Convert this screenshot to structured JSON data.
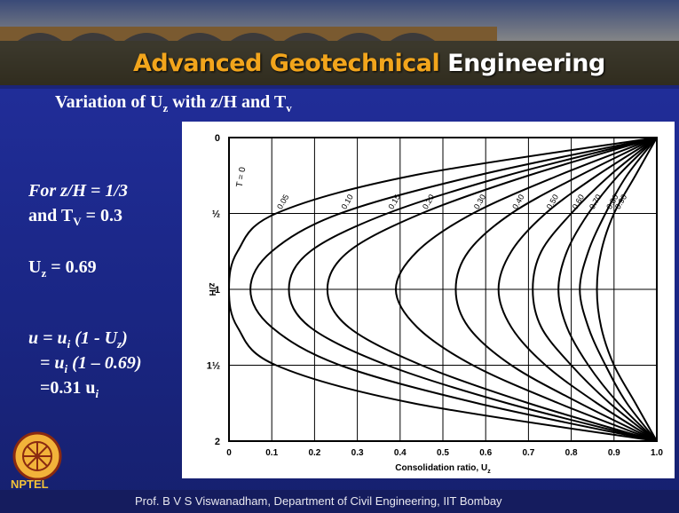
{
  "header": {
    "course_title_1": "Advanced Geotechnical",
    "course_title_2": "Engineering"
  },
  "slide_title": [
    "Variation of U",
    "z",
    " with z/H and T",
    "v"
  ],
  "notes": {
    "line1": "For z/H = 1/3",
    "line2": [
      "and T",
      "V",
      " = 0.3"
    ],
    "line3": [
      "U",
      "z",
      " = 0.69"
    ],
    "line4": [
      "u = u",
      "i",
      " (1 - U",
      "z",
      ")"
    ],
    "line5": [
      "= u",
      "i",
      " (1 – 0.69)"
    ],
    "line6": [
      "=0.31 u",
      "i"
    ]
  },
  "logo_text": "NPTEL",
  "footer": "Prof. B V S Viswanadham, Department of Civil Engineering, IIT Bombay",
  "chart_data": {
    "type": "line",
    "x_label": [
      "Consolidation ratio, U",
      "z"
    ],
    "y_label": "z/H",
    "annotation": "T = 0",
    "xlim": [
      0,
      1
    ],
    "ylim": [
      0,
      2
    ],
    "xticks": [
      0,
      0.1,
      0.2,
      0.3,
      0.4,
      0.5,
      0.6,
      0.7,
      0.8,
      0.9,
      {
        "value": 1,
        "label": "1.0"
      }
    ],
    "yticks": [
      0,
      {
        "value": 0.5,
        "label": "½"
      },
      1,
      {
        "value": 1.5,
        "label": "1½"
      },
      2
    ],
    "grid": true,
    "y": [
      0,
      0.25,
      0.5,
      0.75,
      1,
      1.25,
      1.5,
      1.75,
      2
    ],
    "series": [
      {
        "name": "0.05",
        "color": "#000000",
        "values": [
          1,
          0.43,
          0.11,
          0.02,
          0.0,
          0.02,
          0.11,
          0.43,
          1
        ]
      },
      {
        "name": "0.10",
        "color": "#000000",
        "values": [
          1,
          0.58,
          0.26,
          0.1,
          0.05,
          0.1,
          0.26,
          0.58,
          1
        ]
      },
      {
        "name": "0.15",
        "color": "#000000",
        "values": [
          1,
          0.65,
          0.37,
          0.19,
          0.14,
          0.19,
          0.37,
          0.65,
          1
        ]
      },
      {
        "name": "0.20",
        "color": "#000000",
        "values": [
          1,
          0.7,
          0.45,
          0.28,
          0.23,
          0.28,
          0.45,
          0.7,
          1
        ]
      },
      {
        "name": "0.30",
        "color": "#000000",
        "values": [
          1,
          0.77,
          0.57,
          0.44,
          0.39,
          0.44,
          0.57,
          0.77,
          1
        ]
      },
      {
        "name": "0.40",
        "color": "#000000",
        "values": [
          1,
          0.82,
          0.66,
          0.56,
          0.53,
          0.56,
          0.66,
          0.82,
          1
        ]
      },
      {
        "name": "0.50",
        "color": "#000000",
        "values": [
          1,
          0.86,
          0.74,
          0.66,
          0.63,
          0.66,
          0.74,
          0.86,
          1
        ]
      },
      {
        "name": "0.60",
        "color": "#000000",
        "values": [
          1,
          0.89,
          0.8,
          0.73,
          0.71,
          0.73,
          0.8,
          0.89,
          1
        ]
      },
      {
        "name": "0.70",
        "color": "#000000",
        "values": [
          1,
          0.91,
          0.84,
          0.79,
          0.77,
          0.79,
          0.84,
          0.91,
          1
        ]
      },
      {
        "name": "0.80",
        "color": "#000000",
        "values": [
          1,
          0.93,
          0.88,
          0.84,
          0.82,
          0.84,
          0.88,
          0.93,
          1
        ]
      },
      {
        "name": "0.90",
        "color": "#000000",
        "values": [
          1,
          0.95,
          0.9,
          0.87,
          0.86,
          0.87,
          0.9,
          0.95,
          1
        ]
      }
    ]
  }
}
